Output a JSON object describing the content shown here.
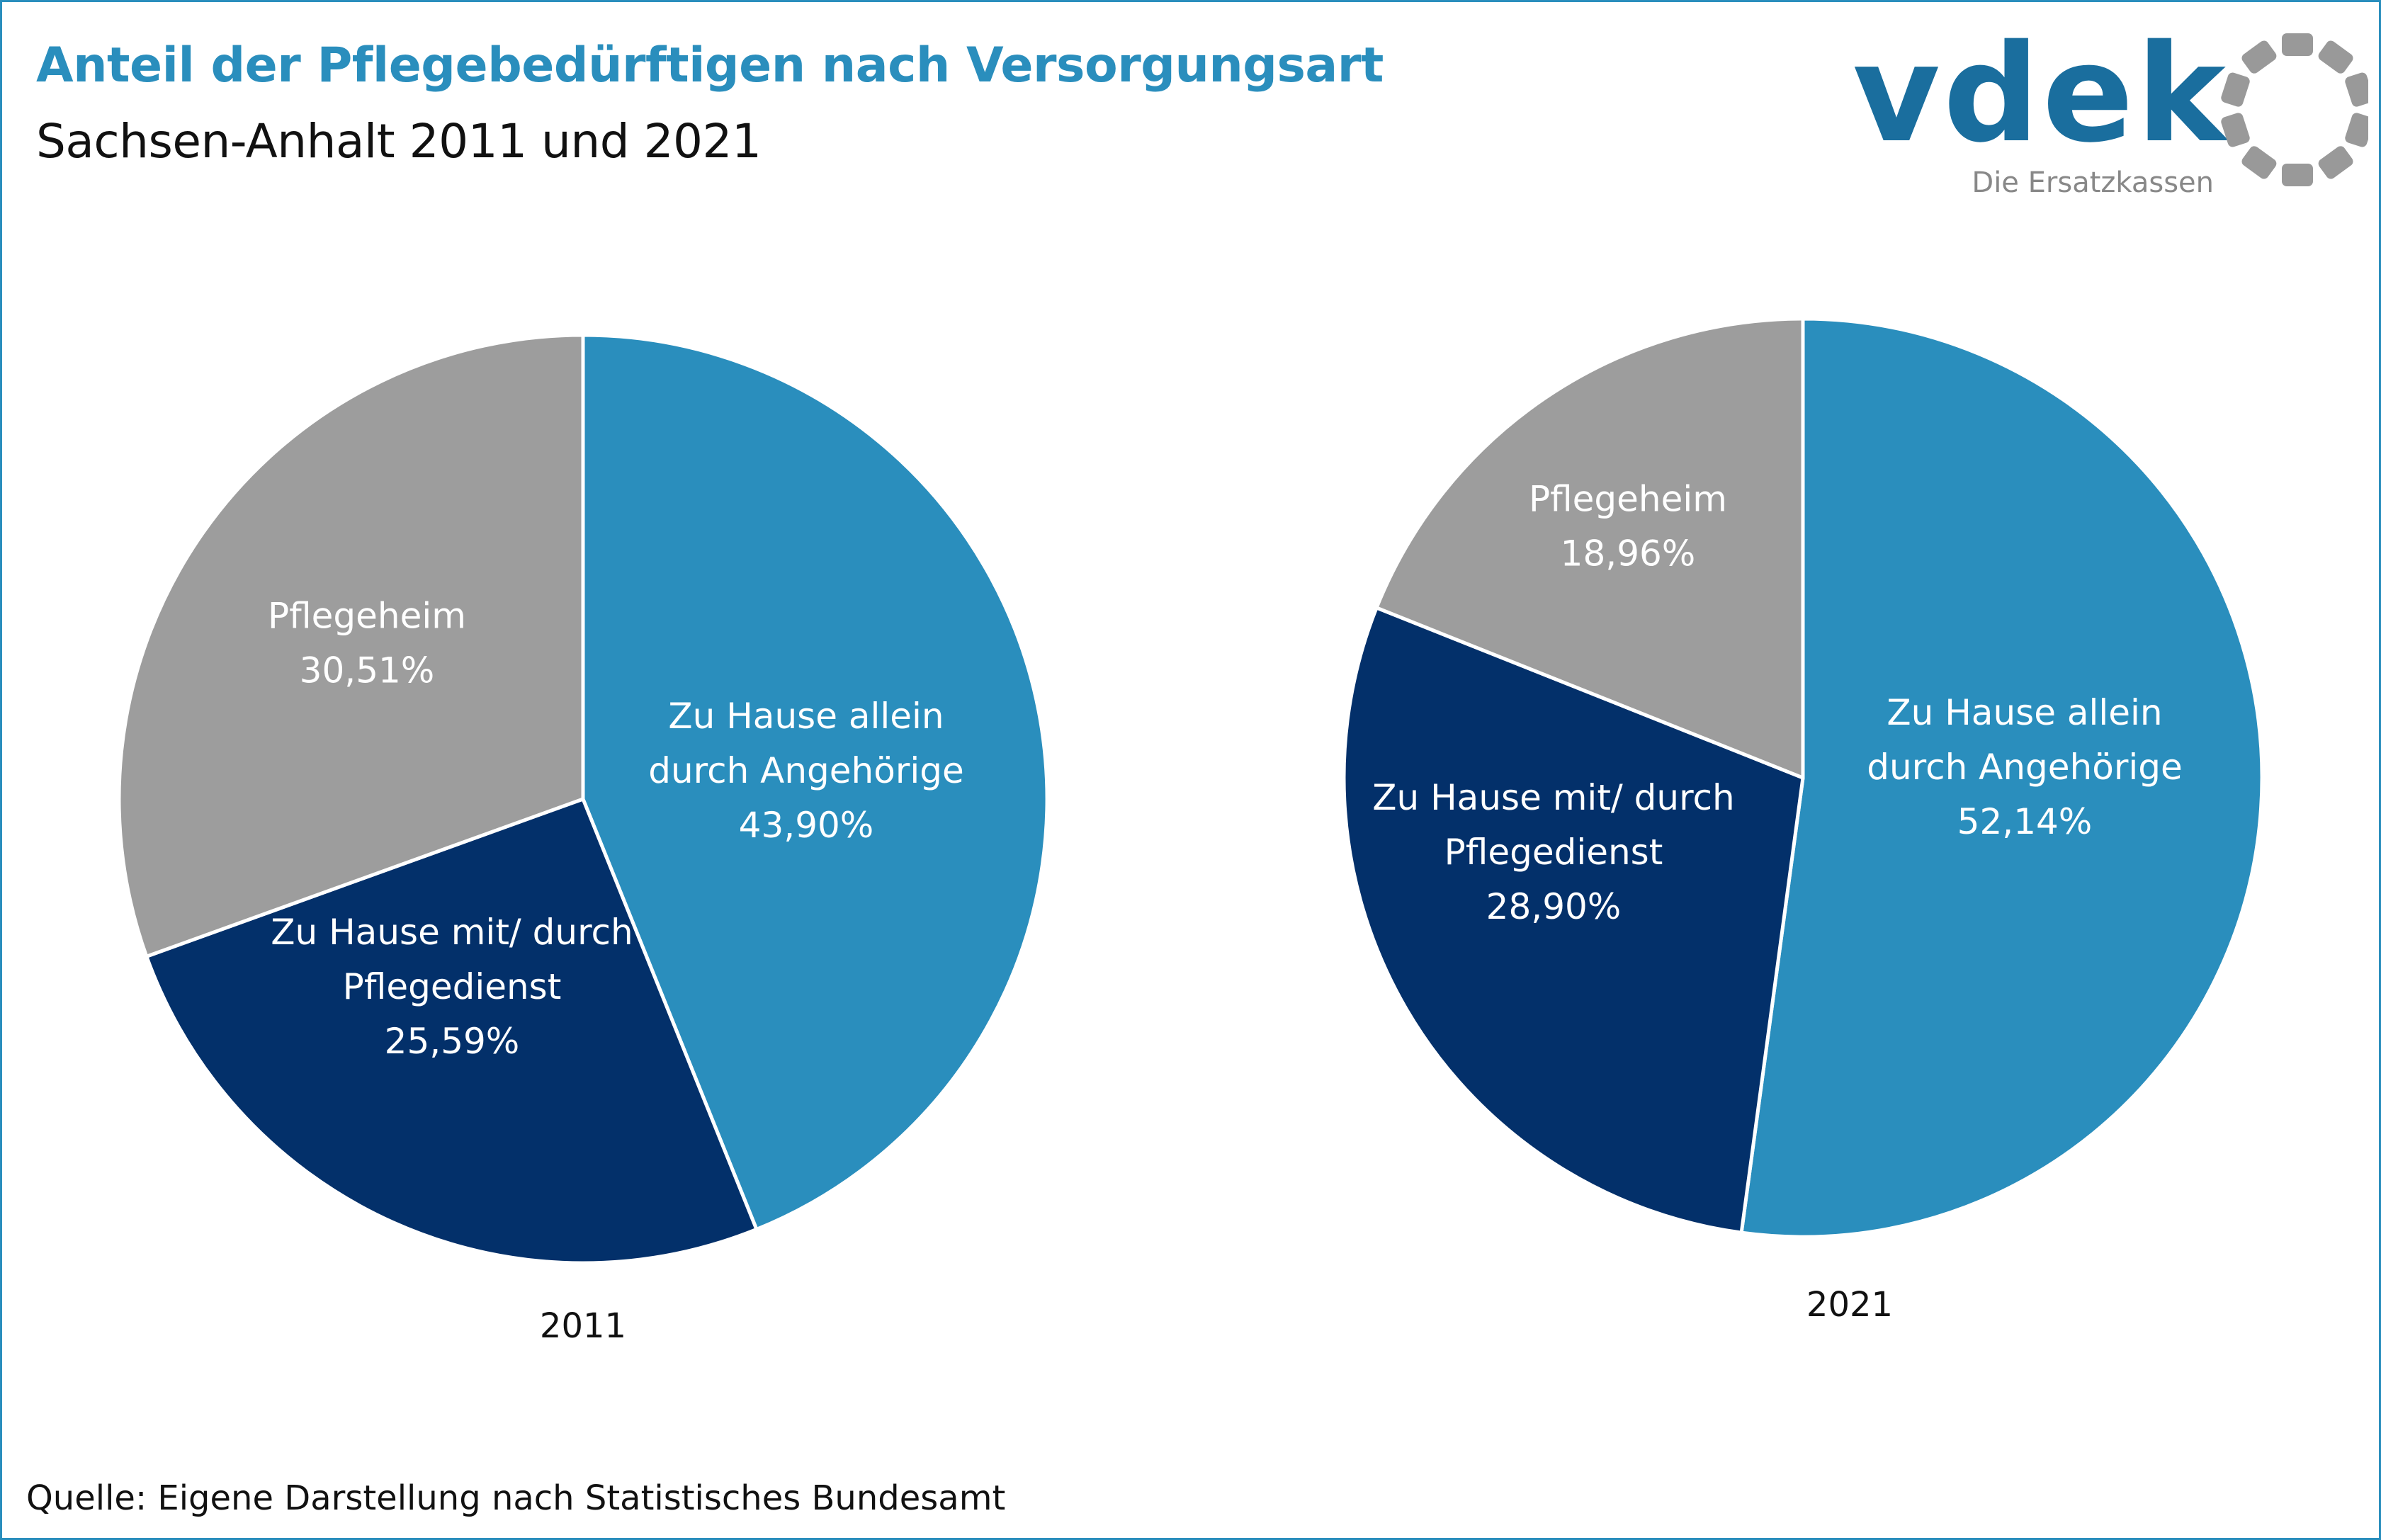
{
  "header": {
    "title": "Anteil der Pflegebedürftigen nach Versorgungsart",
    "subtitle": "Sachsen-Anhalt 2011 und 2021"
  },
  "logo": {
    "wordmark": "vdek",
    "tagline": "Die Ersatzkassen",
    "primary_color": "#1a6e9e",
    "accent_color": "#999999"
  },
  "footer": {
    "source": "Quelle: Eigene Darstellung nach Statistisches Bundesamt"
  },
  "colors": {
    "allein": "#2a8ebd",
    "pflegedienst": "#03306a",
    "pflegeheim": "#9d9d9d"
  },
  "chart_data": [
    {
      "type": "pie",
      "year_label": "2011",
      "slices": [
        {
          "key": "allein",
          "label_lines": [
            "Zu Hause allein",
            "durch Angehörige"
          ],
          "value": 43.9,
          "value_label": "43,90%"
        },
        {
          "key": "pflegedienst",
          "label_lines": [
            "Zu Hause mit/ durch",
            "Pflegedienst"
          ],
          "value": 25.59,
          "value_label": "25,59%"
        },
        {
          "key": "pflegeheim",
          "label_lines": [
            "Pflegeheim"
          ],
          "value": 30.51,
          "value_label": "30,51%"
        }
      ]
    },
    {
      "type": "pie",
      "year_label": "2021",
      "slices": [
        {
          "key": "allein",
          "label_lines": [
            "Zu Hause allein",
            "durch Angehörige"
          ],
          "value": 52.14,
          "value_label": "52,14%"
        },
        {
          "key": "pflegedienst",
          "label_lines": [
            "Zu Hause mit/ durch",
            "Pflegedienst"
          ],
          "value": 28.9,
          "value_label": "28,90%"
        },
        {
          "key": "pflegeheim",
          "label_lines": [
            "Pflegeheim"
          ],
          "value": 18.96,
          "value_label": "18,96%"
        }
      ]
    }
  ]
}
